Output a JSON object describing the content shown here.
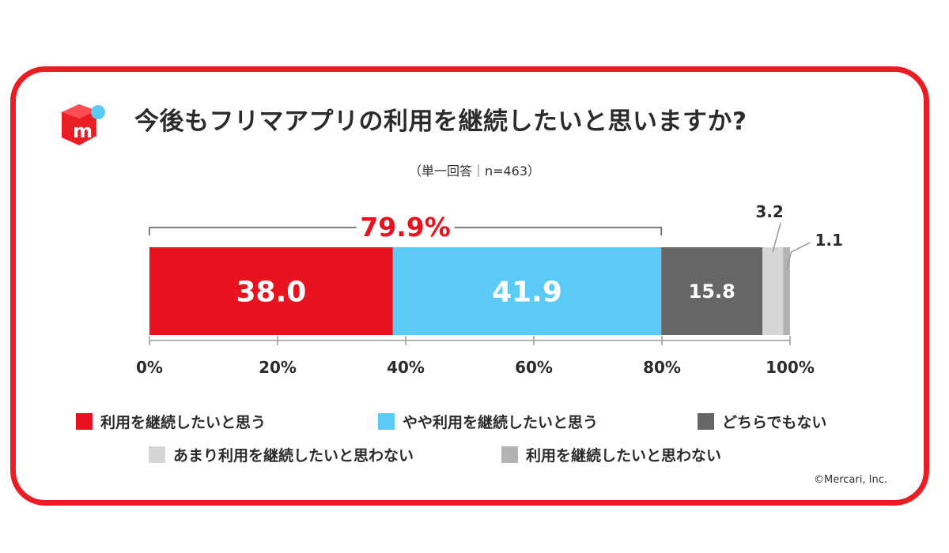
{
  "header": {
    "title": "今後もフリマアプリの利用を継続したいと思いますか?",
    "subtitle": "（単一回答｜n=463）"
  },
  "brand": {
    "accent": "#ea1c24",
    "logo_icon": "mercari-box-logo-icon"
  },
  "copyright": "©Mercari, Inc.",
  "chart_data": {
    "type": "bar",
    "orientation": "horizontal",
    "stacked": true,
    "title": "今後もフリマアプリの利用を継続したいと思いますか?",
    "subtitle": "（単一回答｜n=463）",
    "xlim": [
      0,
      100
    ],
    "ticks": [
      "0%",
      "20%",
      "40%",
      "60%",
      "80%",
      "100%"
    ],
    "tick_values": [
      0,
      20,
      40,
      60,
      80,
      100
    ],
    "legend_position": "bottom",
    "series": [
      {
        "name": "利用を継続したいと思う",
        "value": 38.0,
        "label": "38.0",
        "color": "#e8131e"
      },
      {
        "name": "やや利用を継続したいと思う",
        "value": 41.9,
        "label": "41.9",
        "color": "#5bcbf5"
      },
      {
        "name": "どちらでもない",
        "value": 15.8,
        "label": "15.8",
        "color": "#666666"
      },
      {
        "name": "あまり利用を継続したいと思わない",
        "value": 3.2,
        "label": "3.2",
        "color": "#d6d6d6"
      },
      {
        "name": "利用を継続したいと思わない",
        "value": 1.1,
        "label": "1.1",
        "color": "#b3b3b3"
      }
    ],
    "annotation": {
      "label": "79.9%",
      "from": 0,
      "to": 79.9,
      "color": "#e8131e"
    }
  }
}
